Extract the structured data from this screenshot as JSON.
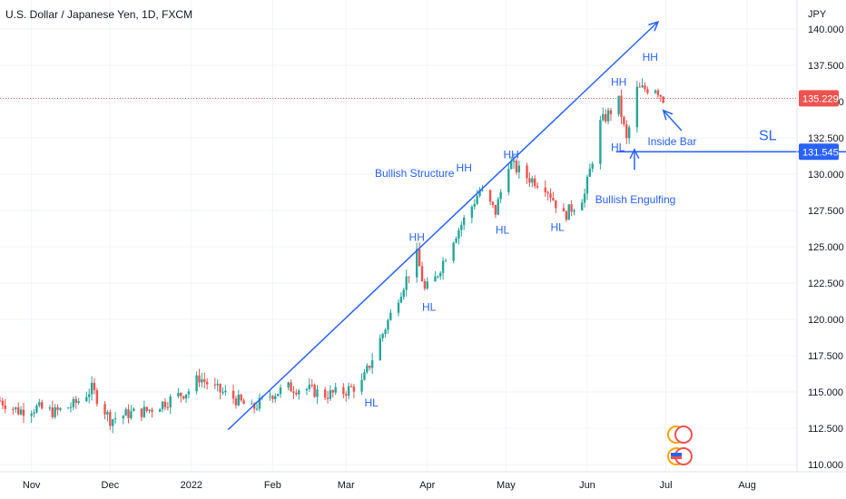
{
  "chart_data": {
    "type": "candlestick",
    "title": "U.S. Dollar / Japanese Yen, 1D, FXCM",
    "currency_label": "JPY",
    "y_ticks": [
      110.0,
      112.5,
      115.0,
      117.5,
      120.0,
      122.5,
      125.0,
      127.5,
      130.0,
      132.5,
      135.0,
      137.5,
      140.0
    ],
    "y_tick_labels": [
      "110.000",
      "112.500",
      "115.000",
      "117.500",
      "120.000",
      "122.500",
      "125.000",
      "127.500",
      "130.000",
      "132.500",
      "135.000",
      "137.500",
      "140.000"
    ],
    "x_tick_labels": [
      "Nov",
      "Dec",
      "2022",
      "Feb",
      "Mar",
      "Apr",
      "May",
      "Jun",
      "Jul",
      "Aug"
    ],
    "x_ticks": [
      "2021-11-01",
      "2021-12-01",
      "2022-01-01",
      "2022-02-01",
      "2022-03-01",
      "2022-04-01",
      "2022-05-01",
      "2022-06-01",
      "2022-07-01",
      "2022-08-01"
    ],
    "x_range": [
      "2021-10-20",
      "2022-08-20"
    ],
    "ylim": [
      109.5,
      142.0
    ],
    "current_price": {
      "value": 135.229,
      "label": "135.229",
      "color": "#ef5350"
    },
    "sl_level": {
      "value": 131.545,
      "label": "131.545",
      "text": "SL",
      "color": "#2962ff"
    },
    "colors": {
      "up": "#26a69a",
      "down": "#ef5350",
      "drawing": "#2962ff"
    },
    "close_path": [
      [
        "2021-10-20",
        114.4
      ],
      [
        "2021-10-27",
        113.7
      ],
      [
        "2021-11-03",
        113.9
      ],
      [
        "2021-11-10",
        113.6
      ],
      [
        "2021-11-17",
        114.1
      ],
      [
        "2021-11-24",
        115.2
      ],
      [
        "2021-12-01",
        113.1
      ],
      [
        "2021-12-08",
        113.5
      ],
      [
        "2021-12-15",
        113.7
      ],
      [
        "2021-12-22",
        114.3
      ],
      [
        "2021-12-31",
        115.1
      ],
      [
        "2022-01-04",
        116.0
      ],
      [
        "2022-01-10",
        115.2
      ],
      [
        "2022-01-17",
        114.6
      ],
      [
        "2022-01-24",
        113.8
      ],
      [
        "2022-01-31",
        114.8
      ],
      [
        "2022-02-07",
        115.3
      ],
      [
        "2022-02-14",
        115.2
      ],
      [
        "2022-02-21",
        114.8
      ],
      [
        "2022-02-28",
        115.0
      ],
      [
        "2022-03-07",
        115.6
      ],
      [
        "2022-03-14",
        118.6
      ],
      [
        "2022-03-21",
        121.6
      ],
      [
        "2022-03-28",
        124.4
      ],
      [
        "2022-03-31",
        122.0
      ],
      [
        "2022-04-04",
        122.8
      ],
      [
        "2022-04-11",
        125.6
      ],
      [
        "2022-04-18",
        127.8
      ],
      [
        "2022-04-21",
        128.9
      ],
      [
        "2022-04-27",
        127.4
      ],
      [
        "2022-05-02",
        130.8
      ],
      [
        "2022-05-09",
        129.8
      ],
      [
        "2022-05-16",
        129.2
      ],
      [
        "2022-05-23",
        127.1
      ],
      [
        "2022-05-31",
        128.6
      ],
      [
        "2022-06-06",
        133.5
      ],
      [
        "2022-06-13",
        135.0
      ],
      [
        "2022-06-16",
        132.3
      ],
      [
        "2022-06-20",
        135.8
      ],
      [
        "2022-06-27",
        136.0
      ],
      [
        "2022-06-30",
        135.229
      ]
    ],
    "annotations": [
      {
        "text": "Bullish Structure",
        "date": "2022-03-12",
        "price": 129.8,
        "size": "normal"
      },
      {
        "text": "HH",
        "date": "2022-03-25",
        "price": 125.4,
        "size": "normal"
      },
      {
        "text": "HL",
        "date": "2022-03-30",
        "price": 120.6,
        "size": "normal"
      },
      {
        "text": "HL",
        "date": "2022-03-08",
        "price": 114.0,
        "size": "normal"
      },
      {
        "text": "HH",
        "date": "2022-04-12",
        "price": 130.2,
        "size": "normal"
      },
      {
        "text": "HL",
        "date": "2022-04-27",
        "price": 125.9,
        "size": "normal"
      },
      {
        "text": "HH",
        "date": "2022-04-30",
        "price": 131.1,
        "size": "normal"
      },
      {
        "text": "HL",
        "date": "2022-05-18",
        "price": 126.1,
        "size": "normal"
      },
      {
        "text": "HH",
        "date": "2022-06-10",
        "price": 136.1,
        "size": "normal"
      },
      {
        "text": "HH",
        "date": "2022-06-22",
        "price": 137.8,
        "size": "normal"
      },
      {
        "text": "HL",
        "date": "2022-06-10",
        "price": 131.6,
        "size": "normal"
      },
      {
        "text": "Inside Bar",
        "date": "2022-06-24",
        "price": 132.0,
        "size": "normal"
      },
      {
        "text": "Bullish Engulfing",
        "date": "2022-06-04",
        "price": 128.0,
        "size": "normal"
      }
    ],
    "trend_line": {
      "from": [
        "2022-01-15",
        112.4
      ],
      "to": [
        "2022-06-28",
        140.5
      ]
    },
    "arrows": [
      {
        "from": [
          "2022-06-19",
          130.3
        ],
        "to": [
          "2022-06-19",
          131.7
        ]
      },
      {
        "from": [
          "2022-07-07",
          133.0
        ],
        "to": [
          "2022-06-30",
          134.4
        ]
      }
    ]
  }
}
